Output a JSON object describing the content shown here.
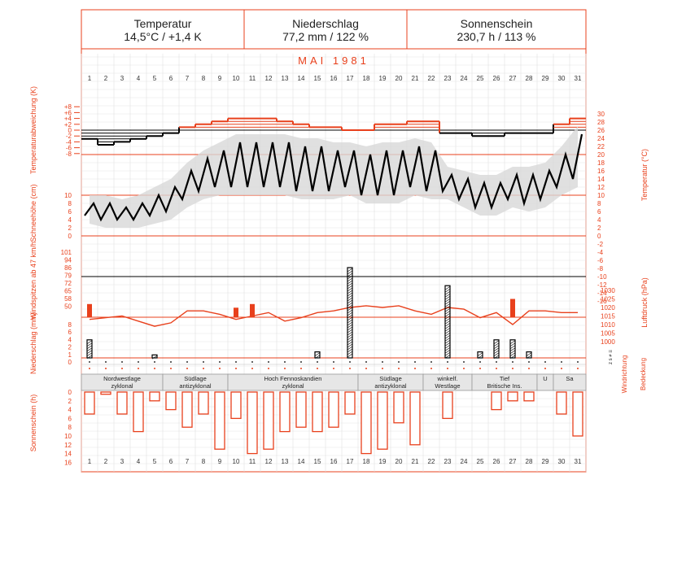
{
  "header": {
    "temperature": {
      "label": "Temperatur",
      "value": "14,5°C / +1,4 K"
    },
    "precipitation": {
      "label": "Niederschlag",
      "value": "77,2 mm / 122 %"
    },
    "sunshine": {
      "label": "Sonnenschein",
      "value": "230,7 h / 113 %"
    }
  },
  "month_title": "MAI   1981",
  "colors": {
    "accent": "#e8401c",
    "black": "#000000",
    "band": "#d8d8d8",
    "grid": "#e0e0e0"
  },
  "chart_data": {
    "type": "line",
    "days": [
      1,
      2,
      3,
      4,
      5,
      6,
      7,
      8,
      9,
      10,
      11,
      12,
      13,
      14,
      15,
      16,
      17,
      18,
      19,
      20,
      21,
      22,
      23,
      24,
      25,
      26,
      27,
      28,
      29,
      30,
      31
    ],
    "panels": [
      {
        "id": "temperature_anomaly",
        "ylabel": "Temperaturabweichung (K)",
        "ticks": [
          "+8",
          "+6",
          "+4",
          "+2",
          "0",
          "-2",
          "-4",
          "-6",
          "-8"
        ],
        "ylim": [
          -8,
          8
        ],
        "daily_anomaly_K": [
          -3,
          -5,
          -4,
          -3,
          -2,
          -1,
          1,
          2,
          3,
          4,
          4,
          4,
          3,
          2,
          1,
          1,
          0,
          0,
          2,
          2,
          3,
          3,
          -1,
          -1,
          -2,
          -2,
          -1,
          -1,
          -1,
          2,
          4
        ]
      },
      {
        "id": "temperature",
        "ylabel": "Temperatur (°C)",
        "ticks": [
          "30",
          "28",
          "26",
          "24",
          "22",
          "20",
          "18",
          "16",
          "14",
          "12",
          "10",
          "8",
          "6",
          "4",
          "2",
          "0",
          "-2",
          "-4",
          "-6",
          "-8",
          "-10",
          "-12",
          "-14",
          "-16"
        ],
        "ylim": [
          -16,
          30
        ],
        "daily_min_C": [
          5,
          4,
          4,
          4,
          5,
          6,
          9,
          11,
          12,
          12,
          12,
          12,
          12,
          11,
          11,
          11,
          12,
          10,
          10,
          10,
          12,
          11,
          11,
          9,
          7,
          7,
          9,
          8,
          9,
          12,
          14
        ],
        "daily_max_C": [
          8,
          8,
          7,
          8,
          10,
          12,
          16,
          19,
          21,
          23,
          23,
          23,
          23,
          22,
          22,
          21,
          21,
          20,
          21,
          21,
          22,
          21,
          15,
          14,
          13,
          13,
          15,
          15,
          16,
          20,
          25
        ]
      },
      {
        "id": "snow_depth",
        "ylabel": "Schneehöhe (cm)",
        "ticks": [
          "10",
          "8",
          "6",
          "4",
          "2",
          "0"
        ],
        "values_cm": [
          0,
          0,
          0,
          0,
          0,
          0,
          0,
          0,
          0,
          0,
          0,
          0,
          0,
          0,
          0,
          0,
          0,
          0,
          0,
          0,
          0,
          0,
          0,
          0,
          0,
          0,
          0,
          0,
          0,
          0,
          0
        ]
      },
      {
        "id": "wind_gusts",
        "ylabel": "Windspitzen ab 47 km/h",
        "ticks": [
          "101",
          "94",
          "86",
          "79",
          "72",
          "65",
          "58",
          "50"
        ],
        "daily_kmh": [
          65,
          0,
          0,
          0,
          0,
          0,
          0,
          0,
          0,
          60,
          65,
          0,
          0,
          0,
          0,
          0,
          0,
          0,
          0,
          0,
          0,
          0,
          0,
          0,
          0,
          0,
          72,
          0,
          0,
          0,
          0
        ]
      },
      {
        "id": "air_pressure",
        "ylabel": "Luftdruck (hPa)",
        "ticks": [
          "1030",
          "1025",
          "1020",
          "1015",
          "1010",
          "1005",
          "1000"
        ],
        "ylim": [
          1000,
          1030
        ],
        "daily_hPa": [
          1013,
          1014,
          1015,
          1012,
          1009,
          1011,
          1018,
          1018,
          1016,
          1013,
          1015,
          1017,
          1012,
          1014,
          1017,
          1018,
          1020,
          1021,
          1020,
          1021,
          1018,
          1016,
          1020,
          1019,
          1014,
          1017,
          1010,
          1018,
          1018,
          1017,
          1017
        ]
      },
      {
        "id": "precipitation",
        "ylabel": "Niederschlag (mm)",
        "ticks": [
          "8",
          "6",
          "4",
          "2",
          "1",
          "0"
        ],
        "daily_mm": [
          3,
          0,
          0,
          0,
          0.5,
          0,
          0,
          0,
          0,
          0,
          0,
          0,
          0,
          0,
          1,
          0,
          15,
          0,
          0,
          0,
          0,
          0,
          12,
          0,
          1,
          3,
          3,
          1,
          0,
          0,
          0
        ]
      },
      {
        "id": "sunshine",
        "ylabel": "Sonnenschein (h)",
        "ticks": [
          "0",
          "2",
          "4",
          "6",
          "8",
          "10",
          "12",
          "14",
          "16"
        ],
        "ylim": [
          0,
          16
        ],
        "daily_hours": [
          5,
          0.5,
          5,
          9,
          2,
          4,
          8,
          5,
          13,
          6,
          14,
          13,
          9,
          8,
          9,
          8,
          5,
          14,
          13,
          7,
          12,
          0,
          6,
          0,
          0,
          4,
          2,
          2,
          0,
          5,
          10
        ]
      }
    ],
    "right_labels": [
      "Windrichtung",
      "Bedeckung"
    ],
    "weather_regimes": [
      {
        "line1": "Nordwestlage",
        "line2": "zyklonal"
      },
      {
        "line1": "Südlage",
        "line2": "antizyklonal"
      },
      {
        "line1": "Hoch Fennoskandien",
        "line2": "zyklonal"
      },
      {
        "line1": "Südlage",
        "line2": "antizyklonal"
      },
      {
        "line1": "winkelf.",
        "line2": "Westlage"
      },
      {
        "line1": "Tief",
        "line2": "Britische Ins."
      },
      {
        "line1": "U",
        "line2": ""
      },
      {
        "line1": "Sa",
        "line2": ""
      }
    ]
  }
}
